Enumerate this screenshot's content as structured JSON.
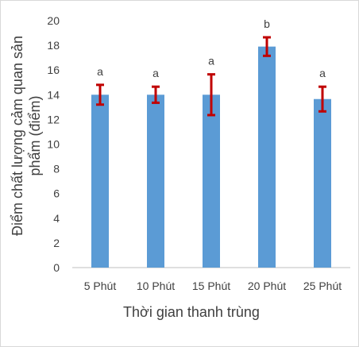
{
  "chart_data": {
    "type": "bar",
    "title": "",
    "categories": [
      "5 Phút",
      "10 Phút",
      "15 Phút",
      "20 Phút",
      "25 Phút"
    ],
    "values": [
      14.0,
      14.0,
      14.0,
      17.9,
      13.65
    ],
    "error_bars": [
      0.8,
      0.65,
      1.65,
      0.75,
      1.0
    ],
    "data_labels": [
      "a",
      "a",
      "a",
      "b",
      "a"
    ],
    "xlabel": "Thời gian thanh trùng",
    "ylabel_lines": [
      "Điểm chất lượng cảm quan sản",
      "phẩm (điểm)"
    ],
    "ylim": [
      0,
      20
    ],
    "yticks": [
      "0",
      "2",
      "4",
      "6",
      "8",
      "10",
      "12",
      "14",
      "16",
      "18",
      "20"
    ],
    "grid": false,
    "legend": "none",
    "colors": {
      "bar": "#5B9BD5",
      "error_bar": "#C00000",
      "axis": "#BFBFBF",
      "text": "#404040"
    }
  }
}
